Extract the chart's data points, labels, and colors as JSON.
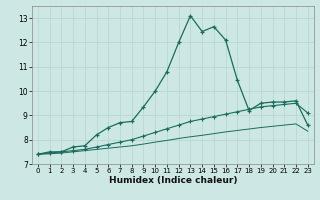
{
  "title": "",
  "xlabel": "Humidex (Indice chaleur)",
  "ylabel": "",
  "background_color": "#cde8e4",
  "grid_color": "#b8d8d4",
  "line_color": "#1a6b5e",
  "spine_color": "#888888",
  "xlim": [
    -0.5,
    23.5
  ],
  "ylim": [
    7,
    13.5
  ],
  "xticks": [
    0,
    1,
    2,
    3,
    4,
    5,
    6,
    7,
    8,
    9,
    10,
    11,
    12,
    13,
    14,
    15,
    16,
    17,
    18,
    19,
    20,
    21,
    22,
    23
  ],
  "yticks": [
    7,
    8,
    9,
    10,
    11,
    12,
    13
  ],
  "line1_x": [
    0,
    1,
    2,
    3,
    4,
    5,
    6,
    7,
    8,
    9,
    10,
    11,
    12,
    13,
    14,
    15,
    16,
    17,
    18,
    19,
    20,
    21,
    22,
    23
  ],
  "line1_y": [
    7.4,
    7.5,
    7.5,
    7.7,
    7.75,
    8.2,
    8.5,
    8.7,
    8.75,
    9.35,
    10.0,
    10.8,
    12.0,
    13.1,
    12.45,
    12.65,
    12.1,
    10.45,
    9.2,
    9.5,
    9.55,
    9.55,
    9.6,
    8.6
  ],
  "line2_x": [
    0,
    1,
    2,
    3,
    4,
    5,
    6,
    7,
    8,
    9,
    10,
    11,
    12,
    13,
    14,
    15,
    16,
    17,
    18,
    19,
    20,
    21,
    22,
    23
  ],
  "line2_y": [
    7.4,
    7.45,
    7.5,
    7.55,
    7.6,
    7.7,
    7.8,
    7.9,
    8.0,
    8.15,
    8.3,
    8.45,
    8.6,
    8.75,
    8.85,
    8.95,
    9.05,
    9.15,
    9.25,
    9.35,
    9.4,
    9.45,
    9.5,
    9.1
  ],
  "line3_x": [
    0,
    1,
    2,
    3,
    4,
    5,
    6,
    7,
    8,
    9,
    10,
    11,
    12,
    13,
    14,
    15,
    16,
    17,
    18,
    19,
    20,
    21,
    22,
    23
  ],
  "line3_y": [
    7.4,
    7.42,
    7.45,
    7.5,
    7.55,
    7.6,
    7.65,
    7.7,
    7.75,
    7.82,
    7.9,
    7.97,
    8.05,
    8.12,
    8.18,
    8.25,
    8.32,
    8.38,
    8.44,
    8.5,
    8.55,
    8.6,
    8.65,
    8.35
  ]
}
